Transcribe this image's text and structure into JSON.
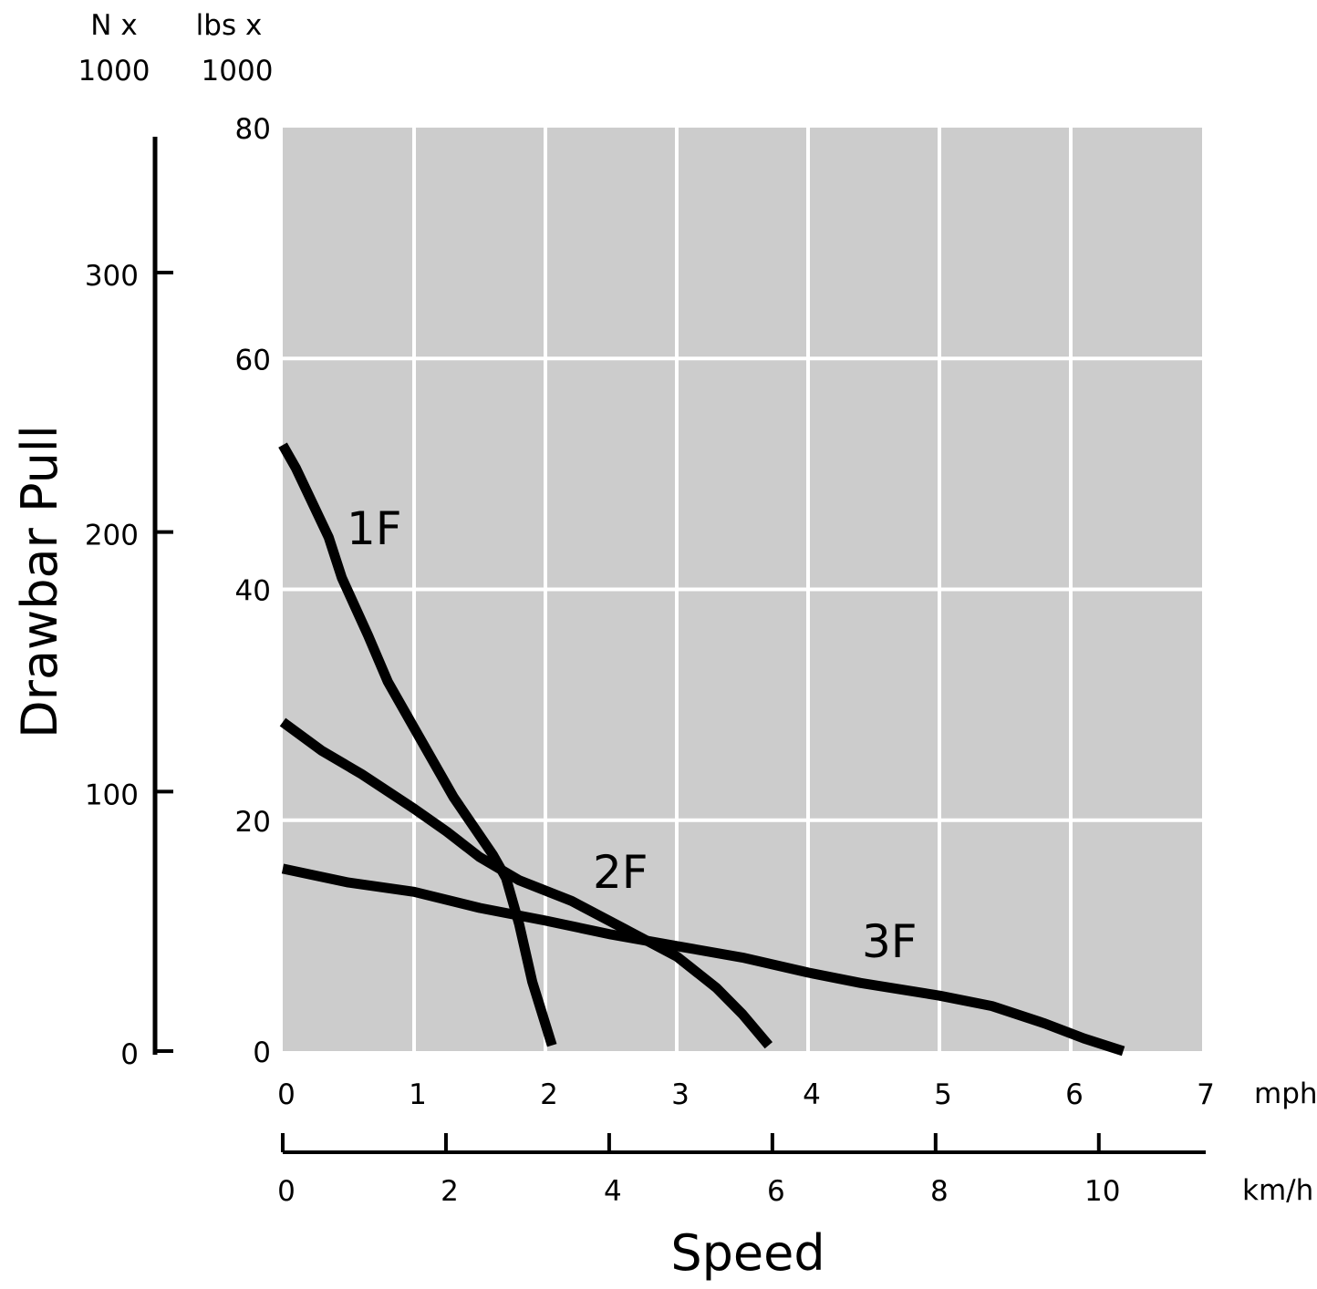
{
  "chart_data": {
    "type": "line",
    "xlabel": "Speed",
    "ylabel": "Drawbar Pull",
    "x_unit_primary": "mph",
    "x_unit_secondary": "km/h",
    "y_unit_primary_line1": "lbs x",
    "y_unit_primary_line2": "1000",
    "y_unit_secondary_line1": "N x",
    "y_unit_secondary_line2": "1000",
    "xlim_mph": [
      0,
      7
    ],
    "ylim_lbs": [
      0,
      80
    ],
    "x_ticks_mph": [
      "0",
      "1",
      "2",
      "3",
      "4",
      "5",
      "6",
      "7"
    ],
    "x_ticks_kmh": [
      "0",
      "2",
      "4",
      "6",
      "8",
      "10"
    ],
    "y_ticks_lbs": [
      "0",
      "20",
      "40",
      "60",
      "80"
    ],
    "y_ticks_N": [
      "0",
      "100",
      "200",
      "300"
    ],
    "grid": true,
    "plot_background": "#cccccc",
    "grid_color": "#ffffff",
    "line_color": "#000000",
    "series": [
      {
        "name": "1F",
        "points": [
          [
            0,
            52.5
          ],
          [
            0.1,
            50.5
          ],
          [
            0.35,
            44.5
          ],
          [
            0.45,
            41
          ],
          [
            0.65,
            36
          ],
          [
            0.8,
            32
          ],
          [
            1.0,
            28
          ],
          [
            1.3,
            22
          ],
          [
            1.6,
            17
          ],
          [
            1.7,
            15
          ],
          [
            1.8,
            11
          ],
          [
            1.9,
            6
          ],
          [
            2.05,
            0.5
          ]
        ]
      },
      {
        "name": "2F",
        "points": [
          [
            0,
            28.5
          ],
          [
            0.3,
            26
          ],
          [
            0.6,
            24
          ],
          [
            1.0,
            21
          ],
          [
            1.25,
            19
          ],
          [
            1.5,
            16.8
          ],
          [
            1.8,
            14.8
          ],
          [
            2.2,
            13
          ],
          [
            2.6,
            10.6
          ],
          [
            3.0,
            8.2
          ],
          [
            3.3,
            5.5
          ],
          [
            3.5,
            3.2
          ],
          [
            3.7,
            0.5
          ]
        ]
      },
      {
        "name": "3F",
        "points": [
          [
            0,
            15.8
          ],
          [
            0.5,
            14.6
          ],
          [
            1.0,
            13.8
          ],
          [
            1.5,
            12.4
          ],
          [
            2.0,
            11.3
          ],
          [
            2.5,
            10.1
          ],
          [
            3.0,
            9.1
          ],
          [
            3.5,
            8.1
          ],
          [
            4.0,
            6.8
          ],
          [
            4.4,
            5.9
          ],
          [
            5.0,
            4.8
          ],
          [
            5.4,
            3.9
          ],
          [
            5.8,
            2.4
          ],
          [
            6.1,
            1.1
          ],
          [
            6.4,
            0
          ]
        ]
      }
    ]
  }
}
